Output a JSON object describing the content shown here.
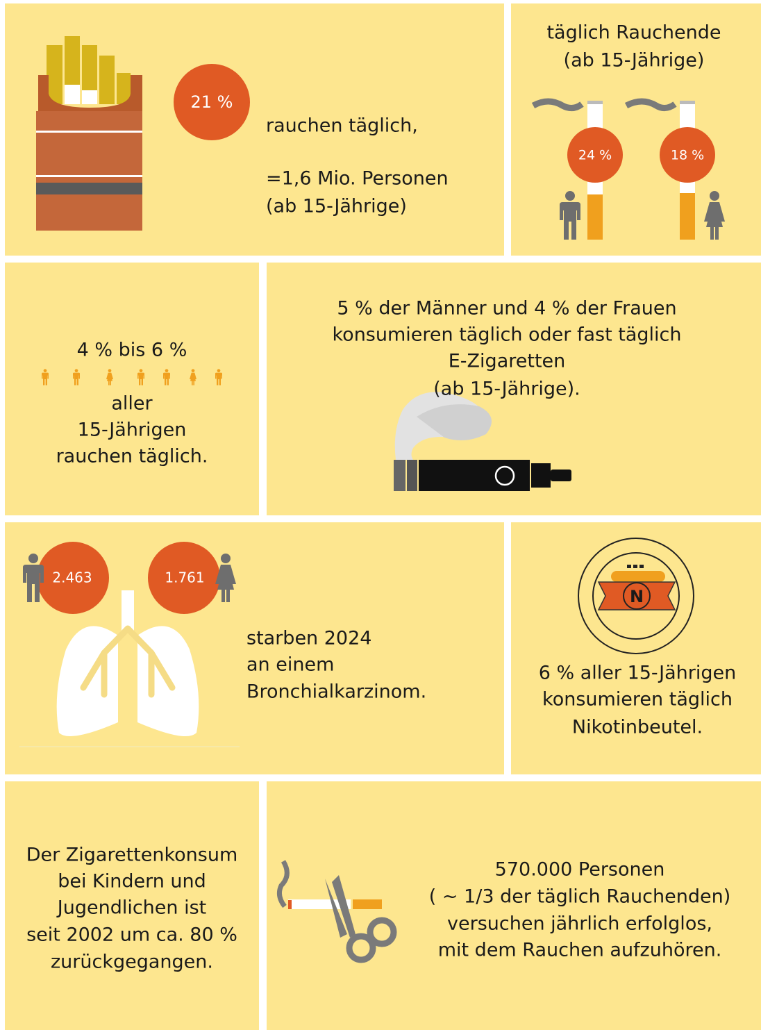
{
  "daily_smokers": {
    "percent": "21 %",
    "lines": [
      "rauchen täglich,",
      "=1,6 Mio. Personen",
      "(ab 15-Jährige)"
    ]
  },
  "by_sex": {
    "title_lines": [
      "täglich Rauchende",
      "(ab 15-Jährige)"
    ],
    "men": "24 %",
    "women": "18 %"
  },
  "youth": {
    "range": "4 % bis 6 %",
    "lines": [
      "aller",
      "15-Jährigen",
      "rauchen täglich."
    ]
  },
  "e_cigarettes": {
    "lines": [
      "5 % der Männer und 4 % der Frauen",
      "konsumieren täglich oder fast täglich",
      "E-Zigaretten",
      "(ab 15-Jährige)."
    ]
  },
  "lung_cancer": {
    "men": "2.463",
    "women": "1.761",
    "lines": [
      "starben 2024",
      "an einem",
      "Bronchialkarzinom."
    ]
  },
  "nicotine_pouches": {
    "icon_letter": "N",
    "lines": [
      "6 % aller 15-Jährigen",
      "konsumieren täglich",
      "Nikotinbeutel."
    ]
  },
  "decline": {
    "lines": [
      "Der Zigarettenkonsum",
      "bei Kindern und",
      "Jugendlichen ist",
      "seit 2002 um ca. 80 %",
      "zurückgegangen."
    ]
  },
  "quit_attempts": {
    "lines": [
      "570.000 Personen",
      "( ~ 1/3 der täglich Rauchenden)",
      "versuchen jährlich erfolglos,",
      "mit dem Rauchen aufzuhören."
    ]
  }
}
